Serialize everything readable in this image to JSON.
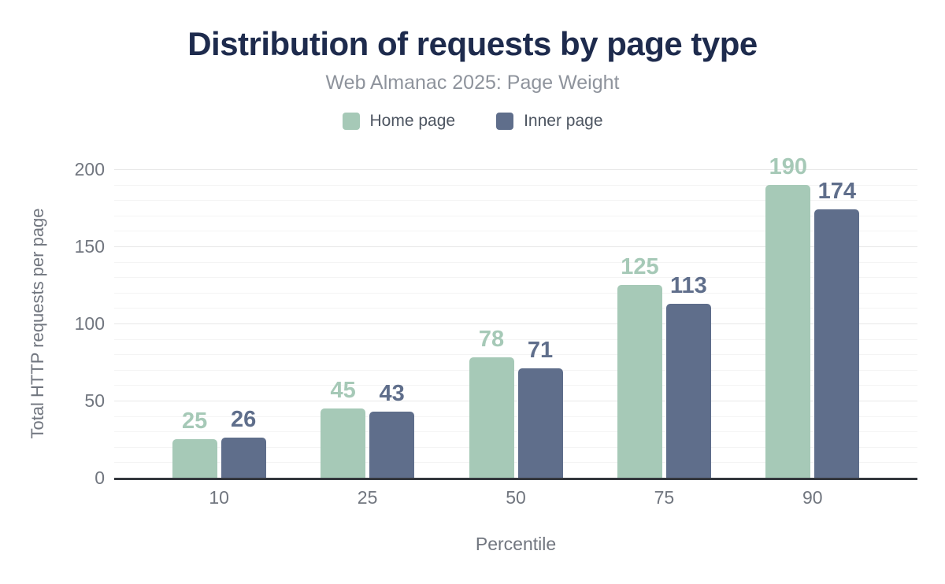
{
  "chart_data": {
    "type": "bar",
    "title": "Distribution of requests by page type",
    "subtitle": "Web Almanac 2025: Page Weight",
    "categories": [
      "10",
      "25",
      "50",
      "75",
      "90"
    ],
    "series": [
      {
        "name": "Home page",
        "color": "#a6c9b7",
        "values": [
          25,
          45,
          78,
          125,
          190
        ]
      },
      {
        "name": "Inner page",
        "color": "#5f6e8b",
        "values": [
          26,
          43,
          71,
          113,
          174
        ]
      }
    ],
    "xlabel": "Percentile",
    "ylabel": "Total HTTP requests per page",
    "ylim": [
      0,
      200
    ],
    "yticks": [
      0,
      50,
      100,
      150,
      200
    ],
    "grid": {
      "minor_step": 10,
      "major_step": 50,
      "visible": true
    },
    "legend_position": "top",
    "value_labels": true
  },
  "colors": {
    "title": "#1e2b4d",
    "subtitle": "#8e939c",
    "legend_text": "#4d5561",
    "tick_text": "#71767f",
    "axis_label_text": "#71767f",
    "baseline": "#34373d",
    "grid_minor": "#f4f4f4",
    "grid_major": "#e8e8e8",
    "background": "#ffffff"
  }
}
